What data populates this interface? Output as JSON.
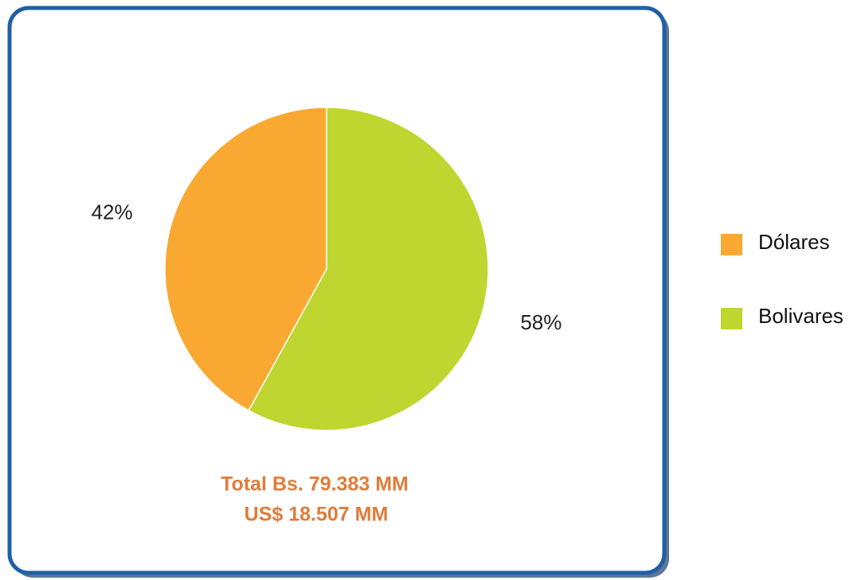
{
  "chart_data": {
    "type": "pie",
    "categories": [
      "Dólares",
      "Bolivares"
    ],
    "values": [
      42,
      58
    ],
    "value_labels": [
      "42%",
      "58%"
    ],
    "colors": [
      "#f9a832",
      "#bed62f"
    ],
    "annotations": [
      "Total Bs. 79.383 MM",
      "US$ 18.507 MM"
    ],
    "legend": "right"
  }
}
